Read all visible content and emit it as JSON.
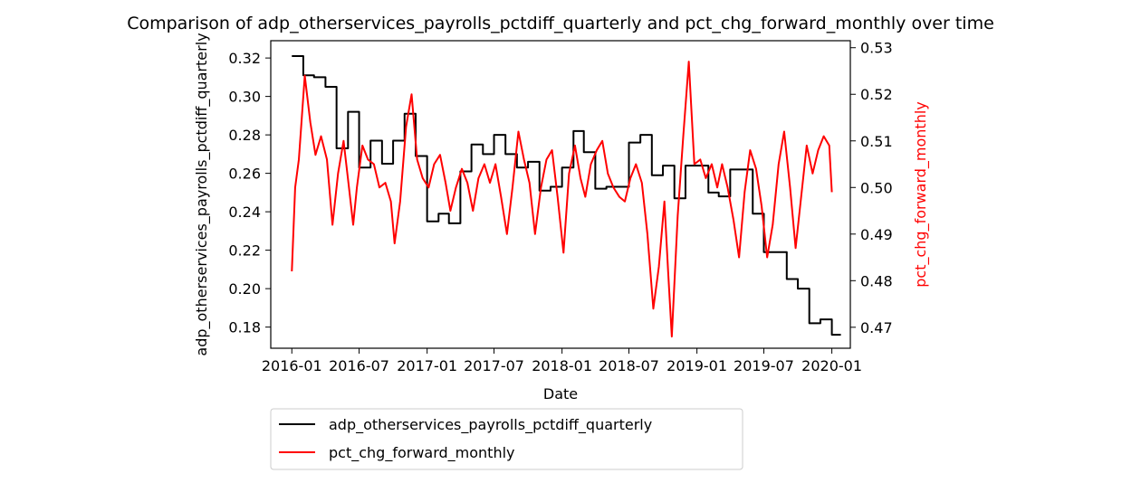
{
  "chart_data": {
    "type": "line",
    "title": "Comparison of adp_otherservices_payrolls_pctdiff_quarterly and pct_chg_forward_monthly over time",
    "xlabel": "Date",
    "ylabel_left": "adp_otherservices_payrolls_pctdiff_quarterly",
    "ylabel_right": "pct_chg_forward_monthly",
    "xlim": [
      "2015-11-05",
      "2020-02-20"
    ],
    "x_ticks": [
      "2016-01",
      "2016-07",
      "2017-01",
      "2017-07",
      "2018-01",
      "2018-07",
      "2019-01",
      "2019-07",
      "2020-01"
    ],
    "ylim_left": [
      0.169,
      0.329
    ],
    "yticks_left": [
      "0.18",
      "0.20",
      "0.22",
      "0.24",
      "0.26",
      "0.28",
      "0.30",
      "0.32"
    ],
    "ylim_right": [
      0.4655,
      0.5315
    ],
    "yticks_right": [
      "0.47",
      "0.48",
      "0.49",
      "0.50",
      "0.51",
      "0.52",
      "0.53"
    ],
    "grid": false,
    "legend_position": "below-left",
    "series": [
      {
        "name": "adp_otherservices_payrolls_pctdiff_quarterly",
        "axis": "left",
        "color": "#000000",
        "step": true,
        "points": [
          [
            "2016-01-01",
            0.321
          ],
          [
            "2016-02-01",
            0.311
          ],
          [
            "2016-03-01",
            0.31
          ],
          [
            "2016-04-01",
            0.305
          ],
          [
            "2016-05-01",
            0.273
          ],
          [
            "2016-06-01",
            0.292
          ],
          [
            "2016-07-01",
            0.263
          ],
          [
            "2016-08-01",
            0.277
          ],
          [
            "2016-09-01",
            0.265
          ],
          [
            "2016-10-01",
            0.277
          ],
          [
            "2016-11-01",
            0.291
          ],
          [
            "2016-12-01",
            0.269
          ],
          [
            "2017-01-01",
            0.235
          ],
          [
            "2017-02-01",
            0.239
          ],
          [
            "2017-03-01",
            0.234
          ],
          [
            "2017-04-01",
            0.261
          ],
          [
            "2017-05-01",
            0.275
          ],
          [
            "2017-06-01",
            0.27
          ],
          [
            "2017-07-01",
            0.28
          ],
          [
            "2017-08-01",
            0.27
          ],
          [
            "2017-09-01",
            0.263
          ],
          [
            "2017-10-01",
            0.266
          ],
          [
            "2017-11-01",
            0.251
          ],
          [
            "2017-12-01",
            0.253
          ],
          [
            "2018-01-01",
            0.263
          ],
          [
            "2018-02-01",
            0.282
          ],
          [
            "2018-03-01",
            0.271
          ],
          [
            "2018-04-01",
            0.252
          ],
          [
            "2018-05-01",
            0.253
          ],
          [
            "2018-06-01",
            0.253
          ],
          [
            "2018-07-01",
            0.276
          ],
          [
            "2018-08-01",
            0.28
          ],
          [
            "2018-09-01",
            0.259
          ],
          [
            "2018-10-01",
            0.264
          ],
          [
            "2018-11-01",
            0.247
          ],
          [
            "2018-12-01",
            0.264
          ],
          [
            "2019-01-01",
            0.264
          ],
          [
            "2019-02-01",
            0.25
          ],
          [
            "2019-03-01",
            0.248
          ],
          [
            "2019-04-01",
            0.262
          ],
          [
            "2019-05-01",
            0.262
          ],
          [
            "2019-06-01",
            0.239
          ],
          [
            "2019-07-01",
            0.219
          ],
          [
            "2019-08-01",
            0.219
          ],
          [
            "2019-09-01",
            0.205
          ],
          [
            "2019-10-01",
            0.2
          ],
          [
            "2019-11-01",
            0.182
          ],
          [
            "2019-12-01",
            0.184
          ],
          [
            "2020-01-01",
            0.176
          ]
        ]
      },
      {
        "name": "pct_chg_forward_monthly",
        "axis": "right",
        "color": "#ff0000",
        "step": false,
        "points": [
          [
            "2016-01-01",
            0.482
          ],
          [
            "2016-01-10",
            0.5
          ],
          [
            "2016-01-20",
            0.506
          ],
          [
            "2016-02-05",
            0.524
          ],
          [
            "2016-02-20",
            0.514
          ],
          [
            "2016-03-05",
            0.507
          ],
          [
            "2016-03-20",
            0.511
          ],
          [
            "2016-04-05",
            0.506
          ],
          [
            "2016-04-20",
            0.492
          ],
          [
            "2016-05-05",
            0.503
          ],
          [
            "2016-05-20",
            0.51
          ],
          [
            "2016-06-05",
            0.499
          ],
          [
            "2016-06-15",
            0.492
          ],
          [
            "2016-06-25",
            0.5
          ],
          [
            "2016-07-10",
            0.509
          ],
          [
            "2016-07-25",
            0.506
          ],
          [
            "2016-08-10",
            0.505
          ],
          [
            "2016-08-25",
            0.5
          ],
          [
            "2016-09-10",
            0.501
          ],
          [
            "2016-09-25",
            0.497
          ],
          [
            "2016-10-05",
            0.488
          ],
          [
            "2016-10-20",
            0.497
          ],
          [
            "2016-11-05",
            0.513
          ],
          [
            "2016-11-20",
            0.52
          ],
          [
            "2016-12-05",
            0.506
          ],
          [
            "2016-12-20",
            0.502
          ],
          [
            "2017-01-05",
            0.5
          ],
          [
            "2017-01-20",
            0.505
          ],
          [
            "2017-02-05",
            0.507
          ],
          [
            "2017-02-20",
            0.501
          ],
          [
            "2017-03-05",
            0.495
          ],
          [
            "2017-03-20",
            0.5
          ],
          [
            "2017-04-05",
            0.504
          ],
          [
            "2017-04-20",
            0.501
          ],
          [
            "2017-05-05",
            0.495
          ],
          [
            "2017-05-20",
            0.502
          ],
          [
            "2017-06-05",
            0.505
          ],
          [
            "2017-06-20",
            0.501
          ],
          [
            "2017-07-05",
            0.505
          ],
          [
            "2017-07-20",
            0.498
          ],
          [
            "2017-08-05",
            0.49
          ],
          [
            "2017-08-20",
            0.5
          ],
          [
            "2017-09-05",
            0.512
          ],
          [
            "2017-09-20",
            0.506
          ],
          [
            "2017-10-05",
            0.501
          ],
          [
            "2017-10-20",
            0.49
          ],
          [
            "2017-11-05",
            0.5
          ],
          [
            "2017-11-20",
            0.506
          ],
          [
            "2017-12-05",
            0.508
          ],
          [
            "2017-12-20",
            0.498
          ],
          [
            "2018-01-05",
            0.486
          ],
          [
            "2018-01-20",
            0.503
          ],
          [
            "2018-02-05",
            0.509
          ],
          [
            "2018-02-20",
            0.502
          ],
          [
            "2018-03-05",
            0.498
          ],
          [
            "2018-03-20",
            0.505
          ],
          [
            "2018-04-05",
            0.508
          ],
          [
            "2018-04-20",
            0.51
          ],
          [
            "2018-05-05",
            0.503
          ],
          [
            "2018-05-20",
            0.5
          ],
          [
            "2018-06-05",
            0.498
          ],
          [
            "2018-06-20",
            0.497
          ],
          [
            "2018-07-05",
            0.502
          ],
          [
            "2018-07-20",
            0.505
          ],
          [
            "2018-08-05",
            0.501
          ],
          [
            "2018-08-20",
            0.49
          ],
          [
            "2018-09-05",
            0.474
          ],
          [
            "2018-09-20",
            0.483
          ],
          [
            "2018-10-05",
            0.497
          ],
          [
            "2018-10-15",
            0.482
          ],
          [
            "2018-10-25",
            0.468
          ],
          [
            "2018-11-10",
            0.494
          ],
          [
            "2018-11-25",
            0.511
          ],
          [
            "2018-12-10",
            0.527
          ],
          [
            "2018-12-25",
            0.505
          ],
          [
            "2019-01-10",
            0.506
          ],
          [
            "2019-01-25",
            0.502
          ],
          [
            "2019-02-10",
            0.505
          ],
          [
            "2019-02-25",
            0.5
          ],
          [
            "2019-03-10",
            0.505
          ],
          [
            "2019-03-25",
            0.5
          ],
          [
            "2019-04-10",
            0.493
          ],
          [
            "2019-04-25",
            0.485
          ],
          [
            "2019-05-10",
            0.499
          ],
          [
            "2019-05-25",
            0.508
          ],
          [
            "2019-06-10",
            0.504
          ],
          [
            "2019-06-25",
            0.496
          ],
          [
            "2019-07-10",
            0.485
          ],
          [
            "2019-07-25",
            0.492
          ],
          [
            "2019-08-10",
            0.505
          ],
          [
            "2019-08-25",
            0.512
          ],
          [
            "2019-09-10",
            0.5
          ],
          [
            "2019-09-25",
            0.487
          ],
          [
            "2019-10-10",
            0.498
          ],
          [
            "2019-10-25",
            0.509
          ],
          [
            "2019-11-10",
            0.503
          ],
          [
            "2019-11-25",
            0.508
          ],
          [
            "2019-12-10",
            0.511
          ],
          [
            "2019-12-25",
            0.509
          ],
          [
            "2020-01-01",
            0.499
          ]
        ]
      }
    ]
  }
}
